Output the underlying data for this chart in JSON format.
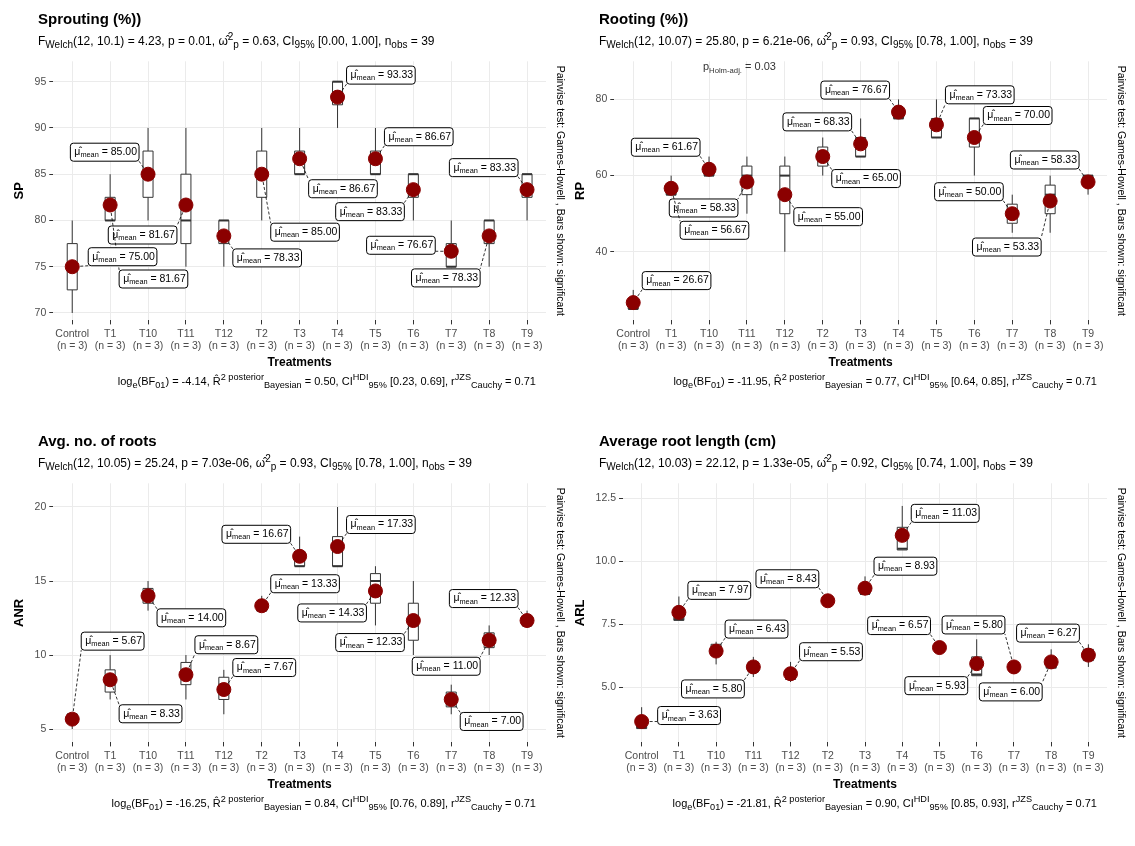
{
  "chart_data": [
    {
      "type": "box",
      "title": "Sprouting (%))",
      "subtitle": "F$_{Welch}$(12, 10.1) = 4.23, p = 0.01, ω̂$^{2}$$_{p}$ = 0.63, CI$_{95%}$ [0.00, 1.00], n$_{obs}$ = 39",
      "xlabel": "Treatments",
      "ylabel": "SP",
      "annotations": [
        "log$_{e}$(BF$_{01}$) = -4.14, R̂$^{2 posterior}$$_{Bayesian}$ = 0.50, CI$^{HDI}$$_{95%}$ [0.23, 0.69], r$^{JZS}$$_{Cauchy}$ = 0.71",
        "Pairwise test: Games-Howell , Bars shown: significant"
      ],
      "categories": [
        "Control\n(n = 3)",
        "T1\n(n = 3)",
        "T10\n(n = 3)",
        "T11\n(n = 3)",
        "T12\n(n = 3)",
        "T2\n(n = 3)",
        "T3\n(n = 3)",
        "T4\n(n = 3)",
        "T5\n(n = 3)",
        "T6\n(n = 3)",
        "T7\n(n = 3)",
        "T8\n(n = 3)",
        "T9\n(n = 3)"
      ],
      "boxes": [
        {
          "low": 70,
          "q1": 72.5,
          "median": 75,
          "q3": 77.5,
          "high": 80
        },
        {
          "low": 80,
          "q1": 80,
          "median": 80,
          "q3": 82.5,
          "high": 85
        },
        {
          "low": 80,
          "q1": 82.5,
          "median": 85,
          "q3": 87.5,
          "high": 90
        },
        {
          "low": 75,
          "q1": 77.5,
          "median": 80,
          "q3": 85,
          "high": 90
        },
        {
          "low": 75,
          "q1": 77.5,
          "median": 80,
          "q3": 80,
          "high": 80
        },
        {
          "low": 80,
          "q1": 82.5,
          "median": 85,
          "q3": 87.5,
          "high": 90
        },
        {
          "low": 85,
          "q1": 85,
          "median": 85,
          "q3": 87.5,
          "high": 90
        },
        {
          "low": 90,
          "q1": 92.5,
          "median": 95,
          "q3": 95,
          "high": 95
        },
        {
          "low": 85,
          "q1": 85,
          "median": 85,
          "q3": 87.5,
          "high": 90
        },
        {
          "low": 80,
          "q1": 82.5,
          "median": 85,
          "q3": 85,
          "high": 85
        },
        {
          "low": 75,
          "q1": 75,
          "median": 75,
          "q3": 77.5,
          "high": 80
        },
        {
          "low": 75,
          "q1": 77.5,
          "median": 80,
          "q3": 80,
          "high": 80
        },
        {
          "low": 80,
          "q1": 82.5,
          "median": 85,
          "q3": 85,
          "high": 85
        }
      ],
      "series": [
        {
          "type": "scatter",
          "color": "#8b0000",
          "x": [
            "Control\n(n = 3)",
            "T1\n(n = 3)",
            "T10\n(n = 3)",
            "T11\n(n = 3)",
            "T12\n(n = 3)",
            "T2\n(n = 3)",
            "T3\n(n = 3)",
            "T4\n(n = 3)",
            "T5\n(n = 3)",
            "T6\n(n = 3)",
            "T7\n(n = 3)",
            "T8\n(n = 3)",
            "T9\n(n = 3)"
          ],
          "values": [
            75,
            81.67,
            85,
            81.67,
            78.33,
            85,
            86.67,
            93.33,
            86.67,
            83.33,
            76.67,
            78.33,
            83.33
          ],
          "value_labels": [
            "μ̂$_{mean}$ = 75.00",
            "μ̂$_{mean}$ = 81.67",
            "μ̂$_{mean}$ = 85.00",
            "μ̂$_{mean}$ = 81.67",
            "μ̂$_{mean}$ = 78.33",
            "μ̂$_{mean}$ = 85.00",
            "μ̂$_{mean}$ = 86.67",
            "μ̂$_{mean}$ = 93.33",
            "μ̂$_{mean}$ = 86.67",
            "μ̂$_{mean}$ = 83.33",
            "μ̂$_{mean}$ = 76.67",
            "μ̂$_{mean}$ = 78.33",
            "μ̂$_{mean}$ = 83.33"
          ]
        }
      ],
      "ylim": [
        69.2,
        97.2
      ],
      "yticks": [
        70,
        75,
        80,
        85,
        90,
        95
      ],
      "grid": true,
      "marker": "circle"
    },
    {
      "type": "box",
      "title": "Rooting (%))",
      "subtitle": "F$_{Welch}$(12, 10.07) = 25.80, p = 6.21e-06, ω̂$^{2}$$_{p}$ = 0.93, CI$_{95%}$ [0.78, 1.00], n$_{obs}$ = 39",
      "xlabel": "Treatments",
      "ylabel": "RP",
      "annotations": [
        "log$_{e}$(BF$_{01}$) = -11.95, R̂$^{2 posterior}$$_{Bayesian}$ = 0.77, CI$^{HDI}$$_{95%}$ [0.64, 0.85], r$^{JZS}$$_{Cauchy}$ = 0.71",
        "Pairwise test: Games-Howell , Bars shown: significant",
        "p$_{Holm-adj.}$ = 0.03"
      ],
      "categories": [
        "Control\n(n = 3)",
        "T1\n(n = 3)",
        "T10\n(n = 3)",
        "T11\n(n = 3)",
        "T12\n(n = 3)",
        "T2\n(n = 3)",
        "T3\n(n = 3)",
        "T4\n(n = 3)",
        "T5\n(n = 3)",
        "T6\n(n = 3)",
        "T7\n(n = 3)",
        "T8\n(n = 3)",
        "T9\n(n = 3)"
      ],
      "boxes": [
        {
          "low": 25,
          "q1": 25,
          "median": 25,
          "q3": 27.5,
          "high": 30
        },
        {
          "low": 55,
          "q1": 55,
          "median": 55,
          "q3": 57.5,
          "high": 60
        },
        {
          "low": 60,
          "q1": 60,
          "median": 60,
          "q3": 62.5,
          "high": 65
        },
        {
          "low": 50,
          "q1": 55,
          "median": 60,
          "q3": 62.5,
          "high": 65
        },
        {
          "low": 40,
          "q1": 50,
          "median": 60,
          "q3": 62.5,
          "high": 65
        },
        {
          "low": 60,
          "q1": 62.5,
          "median": 65,
          "q3": 67.5,
          "high": 70
        },
        {
          "low": 65,
          "q1": 65,
          "median": 65,
          "q3": 70,
          "high": 75
        },
        {
          "low": 75,
          "q1": 75,
          "median": 75,
          "q3": 77.5,
          "high": 80
        },
        {
          "low": 70,
          "q1": 70,
          "median": 70,
          "q3": 75,
          "high": 80
        },
        {
          "low": 60,
          "q1": 67.5,
          "median": 75,
          "q3": 75,
          "high": 75
        },
        {
          "low": 45,
          "q1": 47.5,
          "median": 50,
          "q3": 52.5,
          "high": 55
        },
        {
          "low": 45,
          "q1": 50,
          "median": 55,
          "q3": 57.5,
          "high": 60
        },
        {
          "low": 55,
          "q1": 57.5,
          "median": 60,
          "q3": 60,
          "high": 60
        }
      ],
      "series": [
        {
          "type": "scatter",
          "color": "#8b0000",
          "x": [
            "Control\n(n = 3)",
            "T1\n(n = 3)",
            "T10\n(n = 3)",
            "T11\n(n = 3)",
            "T12\n(n = 3)",
            "T2\n(n = 3)",
            "T3\n(n = 3)",
            "T4\n(n = 3)",
            "T5\n(n = 3)",
            "T6\n(n = 3)",
            "T7\n(n = 3)",
            "T8\n(n = 3)",
            "T9\n(n = 3)"
          ],
          "values": [
            26.67,
            56.67,
            61.67,
            58.33,
            55,
            65,
            68.33,
            76.67,
            73.33,
            70,
            50,
            53.33,
            58.33
          ],
          "value_labels": [
            "μ̂$_{mean}$ = 26.67",
            "μ̂$_{mean}$ = 56.67",
            "μ̂$_{mean}$ = 61.67",
            "μ̂$_{mean}$ = 58.33",
            "μ̂$_{mean}$ = 55.00",
            "μ̂$_{mean}$ = 65.00",
            "μ̂$_{mean}$ = 68.33",
            "μ̂$_{mean}$ = 76.67",
            "μ̂$_{mean}$ = 73.33",
            "μ̂$_{mean}$ = 70.00",
            "μ̂$_{mean}$ = 50.00",
            "μ̂$_{mean}$ = 53.33",
            "μ̂$_{mean}$ = 58.33"
          ]
        }
      ],
      "ylim": [
        22,
        90
      ],
      "yticks": [
        40,
        60,
        80
      ],
      "grid": true,
      "marker": "circle"
    },
    {
      "type": "box",
      "title": "Avg. no. of roots",
      "subtitle": "F$_{Welch}$(12, 10.05) = 25.24, p = 7.03e-06, ω̂$^{2}$$_{p}$ = 0.93, CI$_{95%}$ [0.78, 1.00], n$_{obs}$ = 39",
      "xlabel": "Treatments",
      "ylabel": "ANR",
      "annotations": [
        "log$_{e}$(BF$_{01}$) = -16.25, R̂$^{2 posterior}$$_{Bayesian}$ = 0.84, CI$^{HDI}$$_{95%}$ [0.76, 0.89], r$^{JZS}$$_{Cauchy}$ = 0.71",
        "Pairwise test: Games-Howell , Bars shown: significant"
      ],
      "categories": [
        "Control\n(n = 3)",
        "T1\n(n = 3)",
        "T10\n(n = 3)",
        "T11\n(n = 3)",
        "T12\n(n = 3)",
        "T2\n(n = 3)",
        "T3\n(n = 3)",
        "T4\n(n = 3)",
        "T5\n(n = 3)",
        "T6\n(n = 3)",
        "T7\n(n = 3)",
        "T8\n(n = 3)",
        "T9\n(n = 3)"
      ],
      "boxes": [
        {
          "low": 5,
          "q1": 5.5,
          "median": 6,
          "q3": 6,
          "high": 6
        },
        {
          "low": 7,
          "q1": 7.5,
          "median": 8,
          "q3": 9,
          "high": 10
        },
        {
          "low": 13,
          "q1": 13.5,
          "median": 14,
          "q3": 14.5,
          "high": 15
        },
        {
          "low": 7,
          "q1": 8,
          "median": 9,
          "q3": 9.5,
          "high": 10
        },
        {
          "low": 6,
          "q1": 7,
          "median": 8,
          "q3": 8.5,
          "high": 9
        },
        {
          "low": 13,
          "q1": 13,
          "median": 13,
          "q3": 13.5,
          "high": 14
        },
        {
          "low": 16,
          "q1": 16,
          "median": 16,
          "q3": 17,
          "high": 18
        },
        {
          "low": 16,
          "q1": 16,
          "median": 16,
          "q3": 18,
          "high": 20
        },
        {
          "low": 12,
          "q1": 13.5,
          "median": 15,
          "q3": 15.5,
          "high": 16
        },
        {
          "low": 10,
          "q1": 11,
          "median": 12,
          "q3": 13.5,
          "high": 15
        },
        {
          "low": 6,
          "q1": 6.5,
          "median": 7,
          "q3": 7.5,
          "high": 8
        },
        {
          "low": 10,
          "q1": 10.5,
          "median": 11,
          "q3": 11.5,
          "high": 12
        },
        {
          "low": 12,
          "q1": 12,
          "median": 12,
          "q3": 12.5,
          "high": 13
        }
      ],
      "series": [
        {
          "type": "scatter",
          "color": "#8b0000",
          "x": [
            "Control\n(n = 3)",
            "T1\n(n = 3)",
            "T10\n(n = 3)",
            "T11\n(n = 3)",
            "T12\n(n = 3)",
            "T2\n(n = 3)",
            "T3\n(n = 3)",
            "T4\n(n = 3)",
            "T5\n(n = 3)",
            "T6\n(n = 3)",
            "T7\n(n = 3)",
            "T8\n(n = 3)",
            "T9\n(n = 3)"
          ],
          "values": [
            5.67,
            8.33,
            14,
            8.67,
            7.67,
            13.33,
            16.67,
            17.33,
            14.33,
            12.33,
            7,
            11,
            12.33
          ],
          "value_labels": [
            "μ̂$_{mean}$ = 5.67",
            "μ̂$_{mean}$ = 8.33",
            "μ̂$_{mean}$ = 14.00",
            "μ̂$_{mean}$ = 8.67",
            "μ̂$_{mean}$ = 7.67",
            "μ̂$_{mean}$ = 13.33",
            "μ̂$_{mean}$ = 16.67",
            "μ̂$_{mean}$ = 17.33",
            "μ̂$_{mean}$ = 14.33",
            "μ̂$_{mean}$ = 12.33",
            "μ̂$_{mean}$ = 7.00",
            "μ̂$_{mean}$ = 11.00",
            "μ̂$_{mean}$ = 12.33"
          ]
        }
      ],
      "ylim": [
        4.1,
        21.6
      ],
      "yticks": [
        5,
        10,
        15,
        20
      ],
      "grid": true,
      "marker": "circle"
    },
    {
      "type": "box",
      "title": "Average root length (cm)",
      "subtitle": "F$_{Welch}$(12, 10.03) = 22.12, p = 1.33e-05, ω̂$^{2}$$_{p}$ = 0.92, CI$_{95%}$ [0.74, 1.00], n$_{obs}$ = 39",
      "xlabel": "Treatments",
      "ylabel": "ARL",
      "annotations": [
        "log$_{e}$(BF$_{01}$) = -21.81, R̂$^{2 posterior}$$_{Bayesian}$ = 0.90, CI$^{HDI}$$_{95%}$ [0.85, 0.93], r$^{JZS}$$_{Cauchy}$ = 0.71",
        "Pairwise test: Games-Howell , Bars shown: significant"
      ],
      "categories": [
        "Control\n(n = 3)",
        "T1\n(n = 3)",
        "T10\n(n = 3)",
        "T11\n(n = 3)",
        "T12\n(n = 3)",
        "T2\n(n = 3)",
        "T3\n(n = 3)",
        "T4\n(n = 3)",
        "T5\n(n = 3)",
        "T6\n(n = 3)",
        "T7\n(n = 3)",
        "T8\n(n = 3)",
        "T9\n(n = 3)"
      ],
      "boxes": [
        {
          "low": 3.3,
          "q1": 3.35,
          "median": 3.4,
          "q3": 3.8,
          "high": 4.2
        },
        {
          "low": 7.6,
          "q1": 7.65,
          "median": 7.7,
          "q3": 8.15,
          "high": 8.6
        },
        {
          "low": 5.9,
          "q1": 6.25,
          "median": 6.6,
          "q3": 6.7,
          "high": 6.8
        },
        {
          "low": 5.4,
          "q1": 5.6,
          "median": 5.8,
          "q3": 6,
          "high": 6.2
        },
        {
          "low": 5.2,
          "q1": 5.3,
          "median": 5.4,
          "q3": 5.7,
          "high": 6
        },
        {
          "low": 8.3,
          "q1": 8.35,
          "median": 8.4,
          "q3": 8.5,
          "high": 8.6
        },
        {
          "low": 8.7,
          "q1": 8.7,
          "median": 8.7,
          "q3": 9.05,
          "high": 9.4
        },
        {
          "low": 10.4,
          "q1": 10.45,
          "median": 10.5,
          "q3": 11.35,
          "high": 12.2
        },
        {
          "low": 6.3,
          "q1": 6.45,
          "median": 6.6,
          "q3": 6.7,
          "high": 6.8
        },
        {
          "low": 5.4,
          "q1": 5.45,
          "median": 5.5,
          "q3": 6.2,
          "high": 6.9
        },
        {
          "low": 5.6,
          "q1": 5.7,
          "median": 5.8,
          "q3": 5.9,
          "high": 6
        },
        {
          "low": 5.7,
          "q1": 5.75,
          "median": 5.8,
          "q3": 6.15,
          "high": 6.5
        },
        {
          "low": 5.8,
          "q1": 6.05,
          "median": 6.3,
          "q3": 6.5,
          "high": 6.7
        }
      ],
      "series": [
        {
          "type": "scatter",
          "color": "#8b0000",
          "x": [
            "Control\n(n = 3)",
            "T1\n(n = 3)",
            "T10\n(n = 3)",
            "T11\n(n = 3)",
            "T12\n(n = 3)",
            "T2\n(n = 3)",
            "T3\n(n = 3)",
            "T4\n(n = 3)",
            "T5\n(n = 3)",
            "T6\n(n = 3)",
            "T7\n(n = 3)",
            "T8\n(n = 3)",
            "T9\n(n = 3)"
          ],
          "values": [
            3.63,
            7.97,
            6.43,
            5.8,
            5.53,
            8.43,
            8.93,
            11.03,
            6.57,
            5.93,
            5.8,
            6,
            6.27
          ],
          "value_labels": [
            "μ̂$_{mean}$ = 3.63",
            "μ̂$_{mean}$ = 7.97",
            "μ̂$_{mean}$ = 6.43",
            "μ̂$_{mean}$ = 5.80",
            "μ̂$_{mean}$ = 5.53",
            "μ̂$_{mean}$ = 8.43",
            "μ̂$_{mean}$ = 8.93",
            "μ̂$_{mean}$ = 11.03",
            "μ̂$_{mean}$ = 6.57",
            "μ̂$_{mean}$ = 5.93",
            "μ̂$_{mean}$ = 5.80",
            "μ̂$_{mean}$ = 6.00",
            "μ̂$_{mean}$ = 6.27"
          ]
        }
      ],
      "ylim": [
        2.8,
        13.1
      ],
      "yticks": [
        {
          "value": 5,
          "label": "5.0"
        },
        {
          "value": 7.5,
          "label": "7.5"
        },
        {
          "value": 10,
          "label": "10.0"
        },
        {
          "value": 12.5,
          "label": "12.5"
        }
      ],
      "grid": true,
      "marker": "circle"
    }
  ]
}
